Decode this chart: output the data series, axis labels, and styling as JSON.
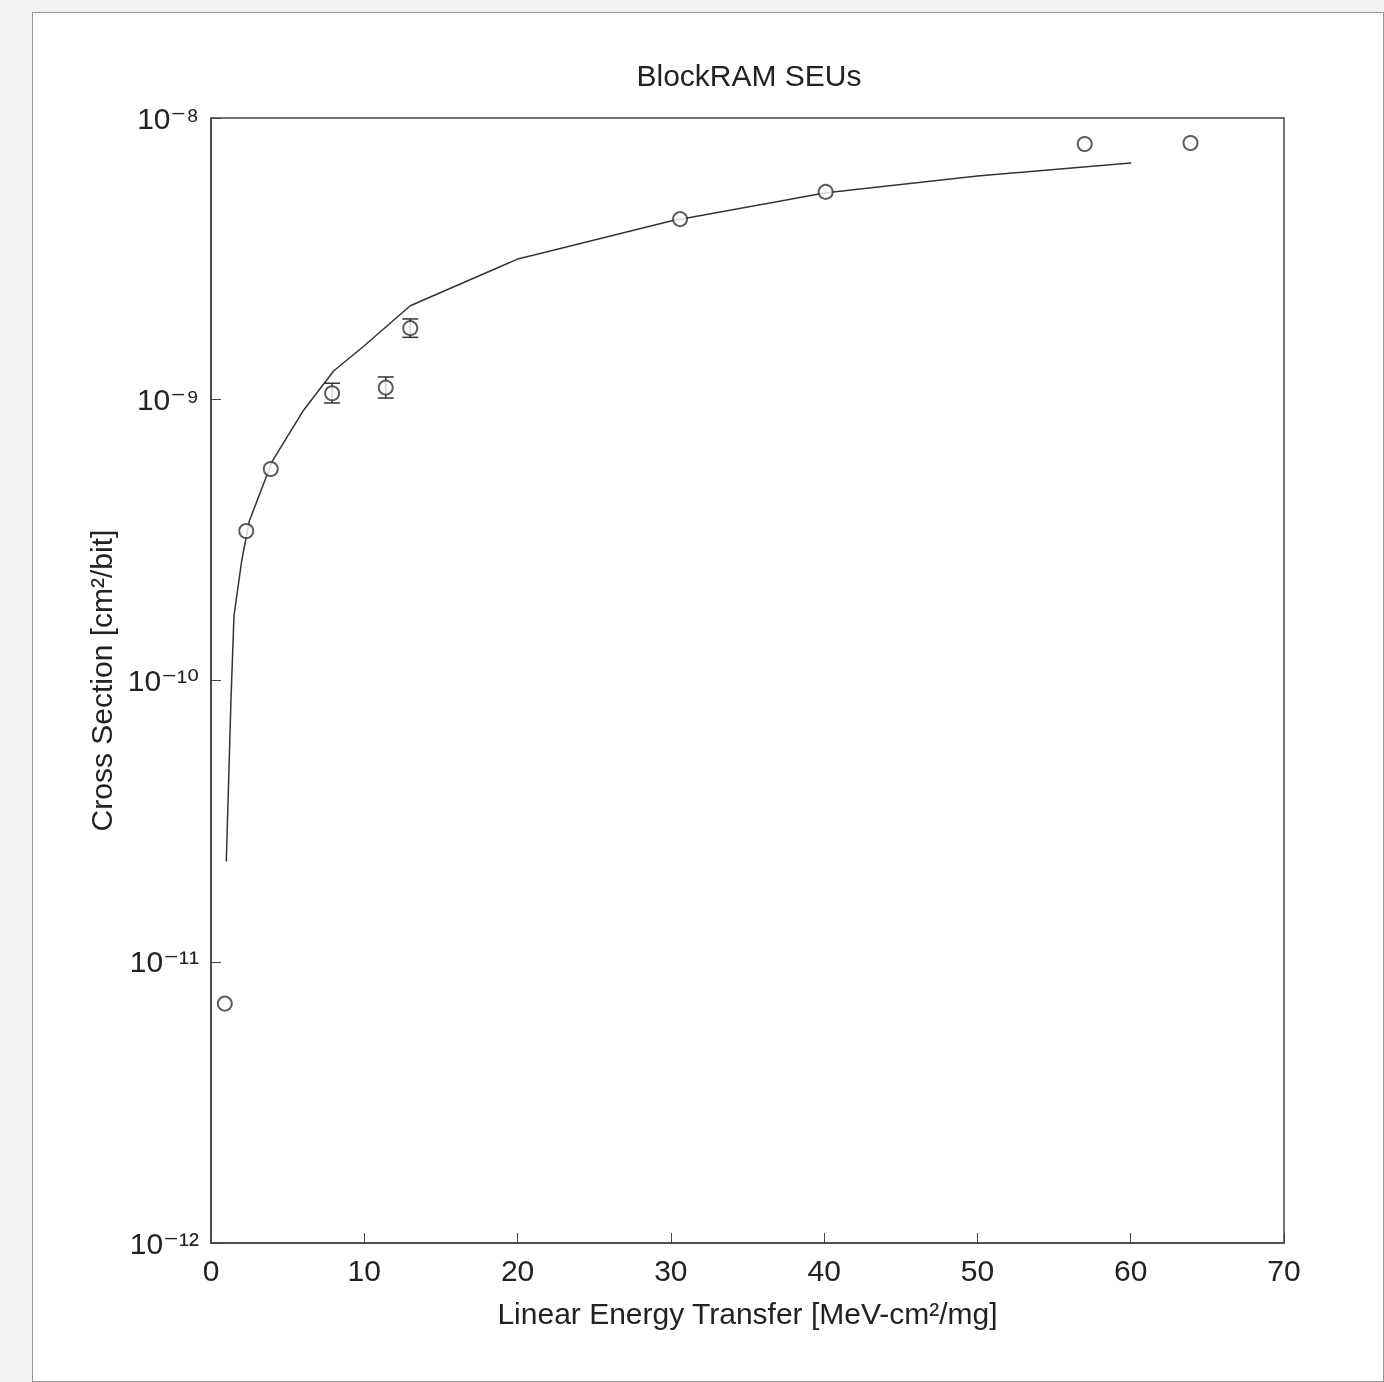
{
  "chart_data": {
    "type": "scatter",
    "title": "BlockRAM SEUs",
    "xlabel": "Linear Energy Transfer [MeV-cm²/mg]",
    "ylabel": "Cross Section [cm²/bit]",
    "log": "y",
    "grid": false,
    "marker": "circle",
    "xlim": [
      0,
      70
    ],
    "xticks": [
      0,
      10,
      20,
      30,
      40,
      50,
      60,
      70
    ],
    "ylim": [
      1e-12,
      1e-08
    ],
    "yticks": [
      {
        "value": 1e-12,
        "label": "10⁻¹²"
      },
      {
        "value": 1e-11,
        "label": "10⁻¹¹"
      },
      {
        "value": 1e-10,
        "label": "10⁻¹⁰"
      },
      {
        "value": 1e-09,
        "label": "10⁻⁹"
      },
      {
        "value": 1e-08,
        "label": "10⁻⁸"
      }
    ],
    "series": [
      {
        "color": "#333333",
        "x": [
          0.9,
          2.3,
          3.9,
          7.9,
          11.4,
          13.0,
          30.6,
          40.1,
          57.0,
          63.9
        ],
        "values": [
          7.1e-12,
          3.4e-10,
          5.65e-10,
          1.05e-09,
          1.1e-09,
          1.79e-09,
          4.37e-09,
          5.46e-09,
          8.08e-09,
          8.15e-09
        ],
        "errors": [
          null,
          null,
          null,
          [
            9.7e-10,
            1.14e-09
          ],
          [
            1.01e-09,
            1.2e-09
          ],
          [
            1.66e-09,
            1.93e-09
          ],
          null,
          null,
          null,
          null
        ]
      },
      {
        "type": "line",
        "color": "#333333",
        "marker": "none",
        "x": [
          1,
          1.3,
          1.5,
          2,
          2.5,
          4,
          6,
          8,
          10,
          13,
          20,
          30,
          40,
          50,
          60
        ],
        "values": [
          2.28e-11,
          8.45e-11,
          1.7e-10,
          2.66e-10,
          3.69e-10,
          6.03e-10,
          9.08e-10,
          1.26e-09,
          1.55e-09,
          2.15e-09,
          3.15e-09,
          4.3e-09,
          5.41e-09,
          6.22e-09,
          6.92e-09
        ]
      }
    ]
  }
}
